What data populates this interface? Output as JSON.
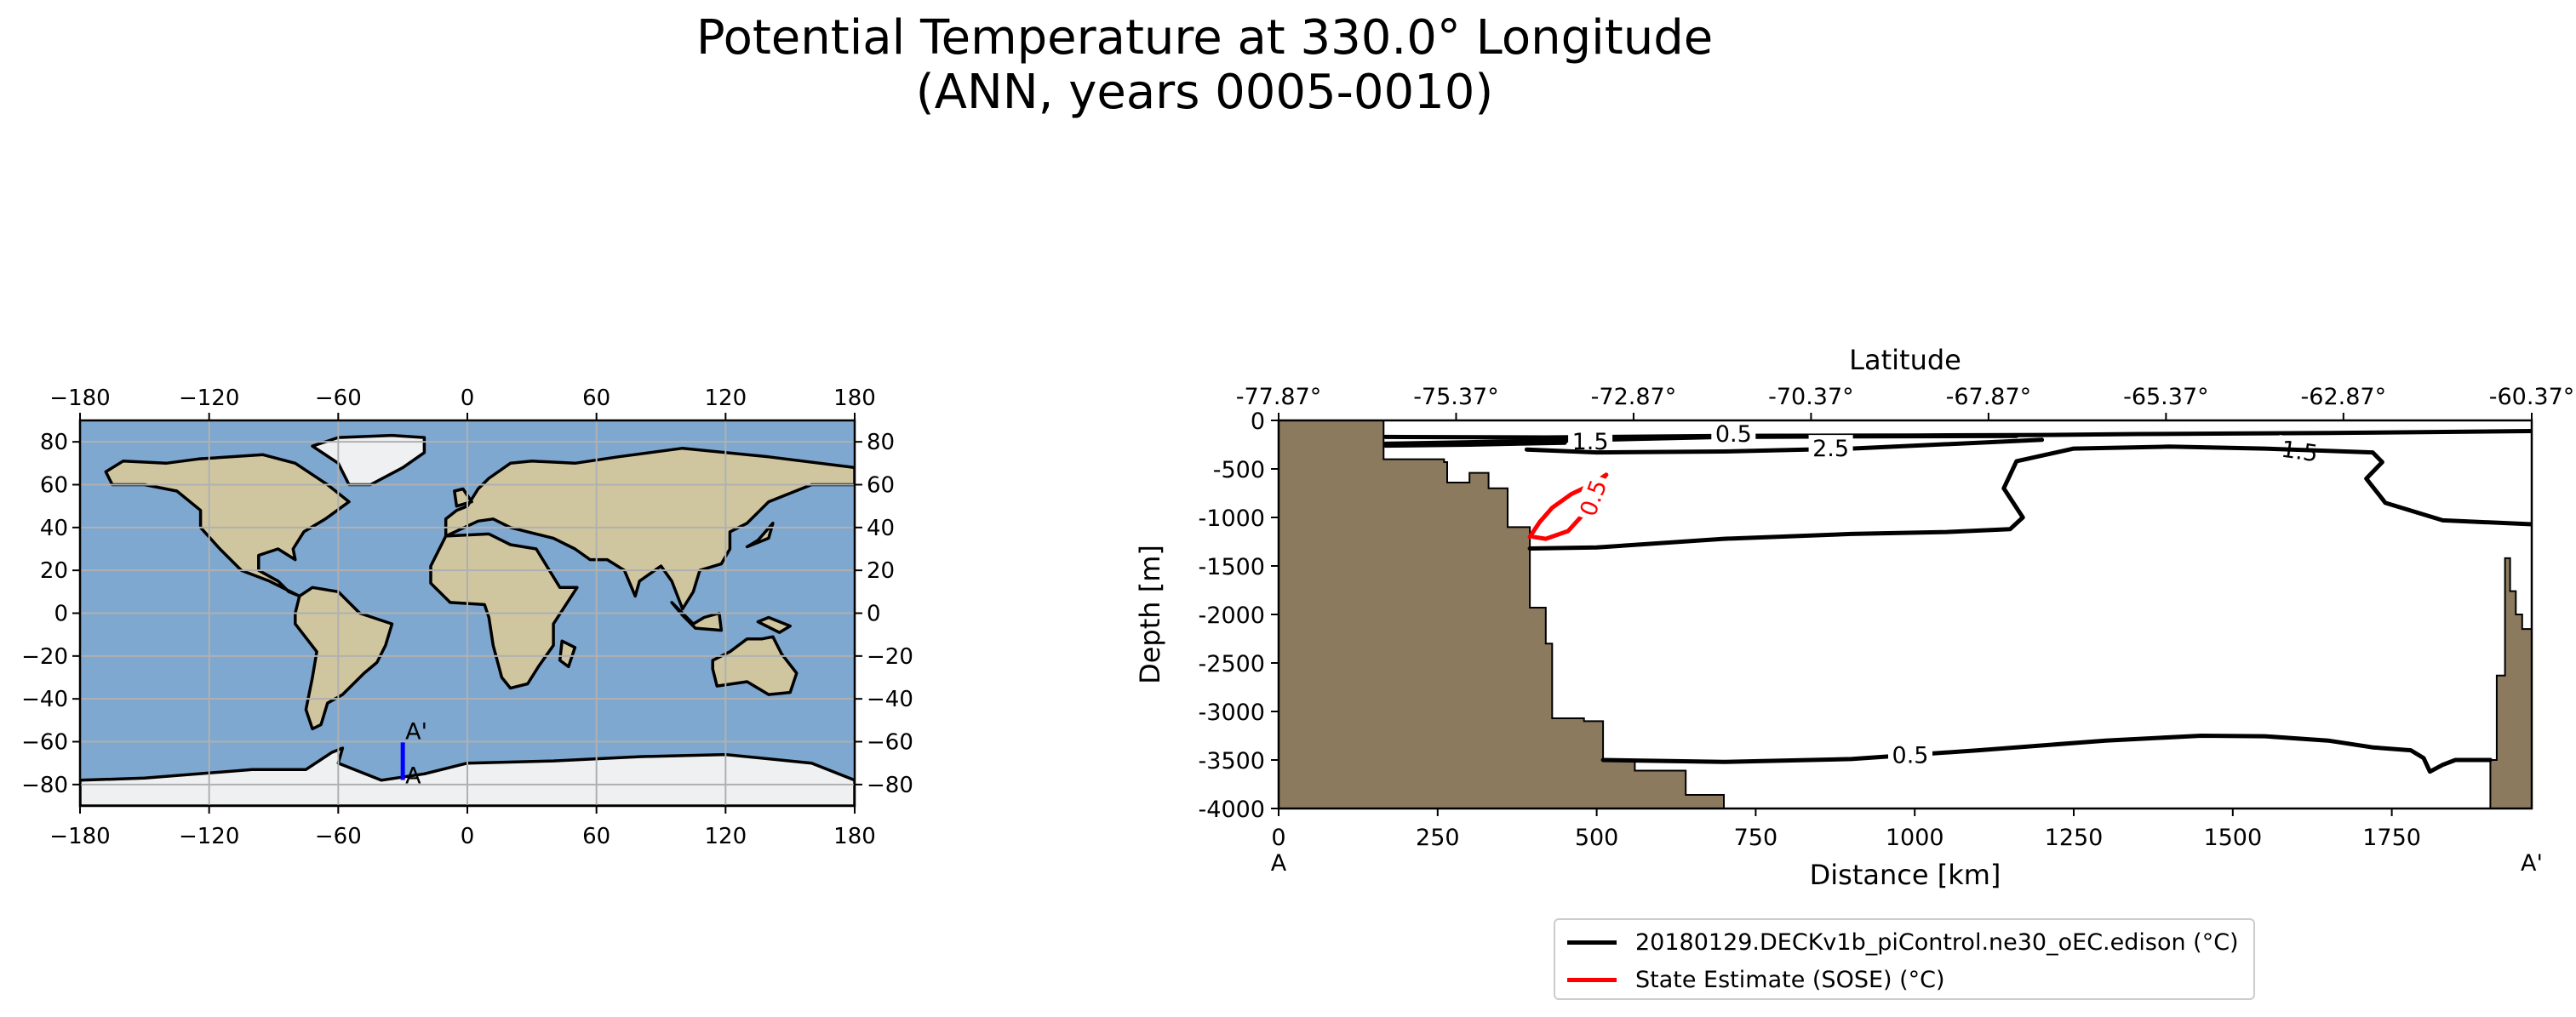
{
  "title": {
    "line1": "Potential Temperature at 330.0° Longitude",
    "line2": "(ANN, years 0005-0010)"
  },
  "chart_data": [
    {
      "type": "map",
      "description_free": true,
      "x_ticks": [
        "−180",
        "−120",
        "−60",
        "0",
        "60",
        "120",
        "180"
      ],
      "y_ticks": [
        "80",
        "60",
        "40",
        "20",
        "0",
        "−20",
        "−40",
        "−60",
        "−80"
      ],
      "xlim": [
        -180,
        180
      ],
      "ylim": [
        -90,
        90
      ],
      "grid": true,
      "transect": {
        "lon": -30,
        "lat_start": -77.87,
        "lat_end": -60.37,
        "start_label": "A",
        "end_label": "A'",
        "color": "#0000ff"
      }
    },
    {
      "type": "line",
      "xlabel": "Distance [km]",
      "ylabel": "Depth [m]",
      "top_axis_label": "Latitude",
      "xlim": [
        0,
        1970
      ],
      "ylim": [
        -4000,
        0
      ],
      "x_ticks": [
        "0",
        "250",
        "500",
        "750",
        "1000",
        "1250",
        "1500",
        "1750"
      ],
      "x_tick_values": [
        0,
        250,
        500,
        750,
        1000,
        1250,
        1500,
        1750
      ],
      "y_ticks": [
        "0",
        "-500",
        "-1000",
        "-1500",
        "-2000",
        "-2500",
        "-3000",
        "-3500",
        "-4000"
      ],
      "y_tick_values": [
        0,
        -500,
        -1000,
        -1500,
        -2000,
        -2500,
        -3000,
        -3500,
        -4000
      ],
      "top_ticks": [
        "-77.87°",
        "-75.37°",
        "-72.87°",
        "-70.37°",
        "-67.87°",
        "-65.37°",
        "-62.87°",
        "-60.37°"
      ],
      "top_tick_values": [
        0,
        279,
        558,
        837,
        1116,
        1395,
        1674,
        1970
      ],
      "start_label": "A",
      "end_label": "A'",
      "bathymetry_color": "#8b7a5e",
      "bathymetry": {
        "left": [
          [
            0,
            0
          ],
          [
            165,
            0
          ],
          [
            165,
            -400
          ],
          [
            260,
            -400
          ],
          [
            260,
            -430
          ],
          [
            265,
            -430
          ],
          [
            265,
            -640
          ],
          [
            300,
            -640
          ],
          [
            300,
            -540
          ],
          [
            330,
            -540
          ],
          [
            330,
            -700
          ],
          [
            360,
            -700
          ],
          [
            360,
            -1100
          ],
          [
            395,
            -1100
          ],
          [
            395,
            -1930
          ],
          [
            420,
            -1930
          ],
          [
            420,
            -2300
          ],
          [
            430,
            -2300
          ],
          [
            430,
            -3070
          ],
          [
            480,
            -3070
          ],
          [
            480,
            -3100
          ],
          [
            510,
            -3100
          ],
          [
            510,
            -3500
          ],
          [
            560,
            -3500
          ],
          [
            560,
            -3610
          ],
          [
            640,
            -3610
          ],
          [
            640,
            -3860
          ],
          [
            700,
            -3860
          ],
          [
            700,
            -4000
          ],
          [
            0,
            -4000
          ]
        ],
        "right": [
          [
            1905,
            -4000
          ],
          [
            1905,
            -3500
          ],
          [
            1915,
            -3500
          ],
          [
            1915,
            -2630
          ],
          [
            1928,
            -2630
          ],
          [
            1928,
            -1420
          ],
          [
            1936,
            -1420
          ],
          [
            1936,
            -1760
          ],
          [
            1945,
            -1760
          ],
          [
            1945,
            -2000
          ],
          [
            1955,
            -2000
          ],
          [
            1955,
            -2150
          ],
          [
            1970,
            -2150
          ],
          [
            1970,
            -4000
          ]
        ]
      },
      "series": [
        {
          "name": "20180129.DECKv1b_piControl.ne30_oEC.edison (°C)",
          "color": "#000000",
          "contours": [
            {
              "label": "1.5",
              "label_at": [
                1605,
                -320
              ],
              "label_rot": 8,
              "points": [
                [
                  168,
                  -170
                ],
                [
                  420,
                  -175
                ],
                [
                  700,
                  -160
                ],
                [
                  1000,
                  -155
                ],
                [
                  1200,
                  -150
                ],
                [
                  1350,
                  -140
                ],
                [
                  1500,
                  -135
                ],
                [
                  1650,
                  -130
                ],
                [
                  1800,
                  -120
                ],
                [
                  1970,
                  -110
                ]
              ]
            },
            {
              "label": "0.5",
              "label_at": [
                715,
                -140
              ],
              "label_rot": 0,
              "points": [
                [
                  168,
                  -240
                ],
                [
                  500,
                  -200
                ],
                [
                  700,
                  -170
                ],
                [
                  900,
                  -165
                ],
                [
                  1160,
                  -160
                ]
              ]
            },
            {
              "label": "1.5",
              "label_at": [
                490,
                -220
              ],
              "label_rot": 0,
              "points": [
                [
                  168,
                  -260
                ],
                [
                  300,
                  -250
                ],
                [
                  450,
                  -230
                ]
              ]
            },
            {
              "label": "2.5",
              "label_at": [
                868,
                -290
              ],
              "label_rot": 0,
              "points": [
                [
                  390,
                  -300
                ],
                [
                  500,
                  -330
                ],
                [
                  700,
                  -320
                ],
                [
                  900,
                  -290
                ],
                [
                  1100,
                  -230
                ],
                [
                  1200,
                  -200
                ]
              ]
            },
            {
              "label": "",
              "label_at": null,
              "label_rot": 0,
              "points": [
                [
                  395,
                  -1320
                ],
                [
                  500,
                  -1310
                ],
                [
                  700,
                  -1220
                ],
                [
                  900,
                  -1170
                ],
                [
                  1050,
                  -1150
                ],
                [
                  1150,
                  -1120
                ],
                [
                  1170,
                  -1000
                ],
                [
                  1140,
                  -700
                ],
                [
                  1160,
                  -420
                ],
                [
                  1250,
                  -290
                ],
                [
                  1400,
                  -270
                ],
                [
                  1550,
                  -290
                ],
                [
                  1720,
                  -330
                ],
                [
                  1735,
                  -430
                ],
                [
                  1710,
                  -600
                ],
                [
                  1740,
                  -850
                ],
                [
                  1830,
                  -1030
                ],
                [
                  1970,
                  -1070
                ]
              ]
            },
            {
              "label": "0.5",
              "label_at": [
                993,
                -3450
              ],
              "label_rot": 0,
              "points": [
                [
                  510,
                  -3500
                ],
                [
                  700,
                  -3520
                ],
                [
                  900,
                  -3490
                ],
                [
                  1100,
                  -3400
                ],
                [
                  1300,
                  -3300
                ],
                [
                  1450,
                  -3250
                ],
                [
                  1550,
                  -3255
                ],
                [
                  1650,
                  -3300
                ],
                [
                  1720,
                  -3370
                ],
                [
                  1780,
                  -3400
                ],
                [
                  1800,
                  -3480
                ],
                [
                  1810,
                  -3620
                ],
                [
                  1830,
                  -3550
                ],
                [
                  1850,
                  -3500
                ],
                [
                  1905,
                  -3500
                ]
              ]
            }
          ]
        },
        {
          "name": "State Estimate (SOSE) (°C)",
          "color": "#ff0000",
          "contours": [
            {
              "label": "0.5",
              "label_at": [
                495,
                -800
              ],
              "label_rot": -70,
              "points": [
                [
                  395,
                  -1200
                ],
                [
                  410,
                  -1050
                ],
                [
                  430,
                  -900
                ],
                [
                  460,
                  -760
                ],
                [
                  495,
                  -650
                ],
                [
                  515,
                  -560
                ],
                [
                  510,
                  -600
                ],
                [
                  500,
                  -760
                ],
                [
                  480,
                  -960
                ],
                [
                  455,
                  -1140
                ],
                [
                  420,
                  -1220
                ],
                [
                  400,
                  -1200
                ]
              ]
            }
          ]
        }
      ],
      "legend_placement": "bottom-center"
    }
  ]
}
